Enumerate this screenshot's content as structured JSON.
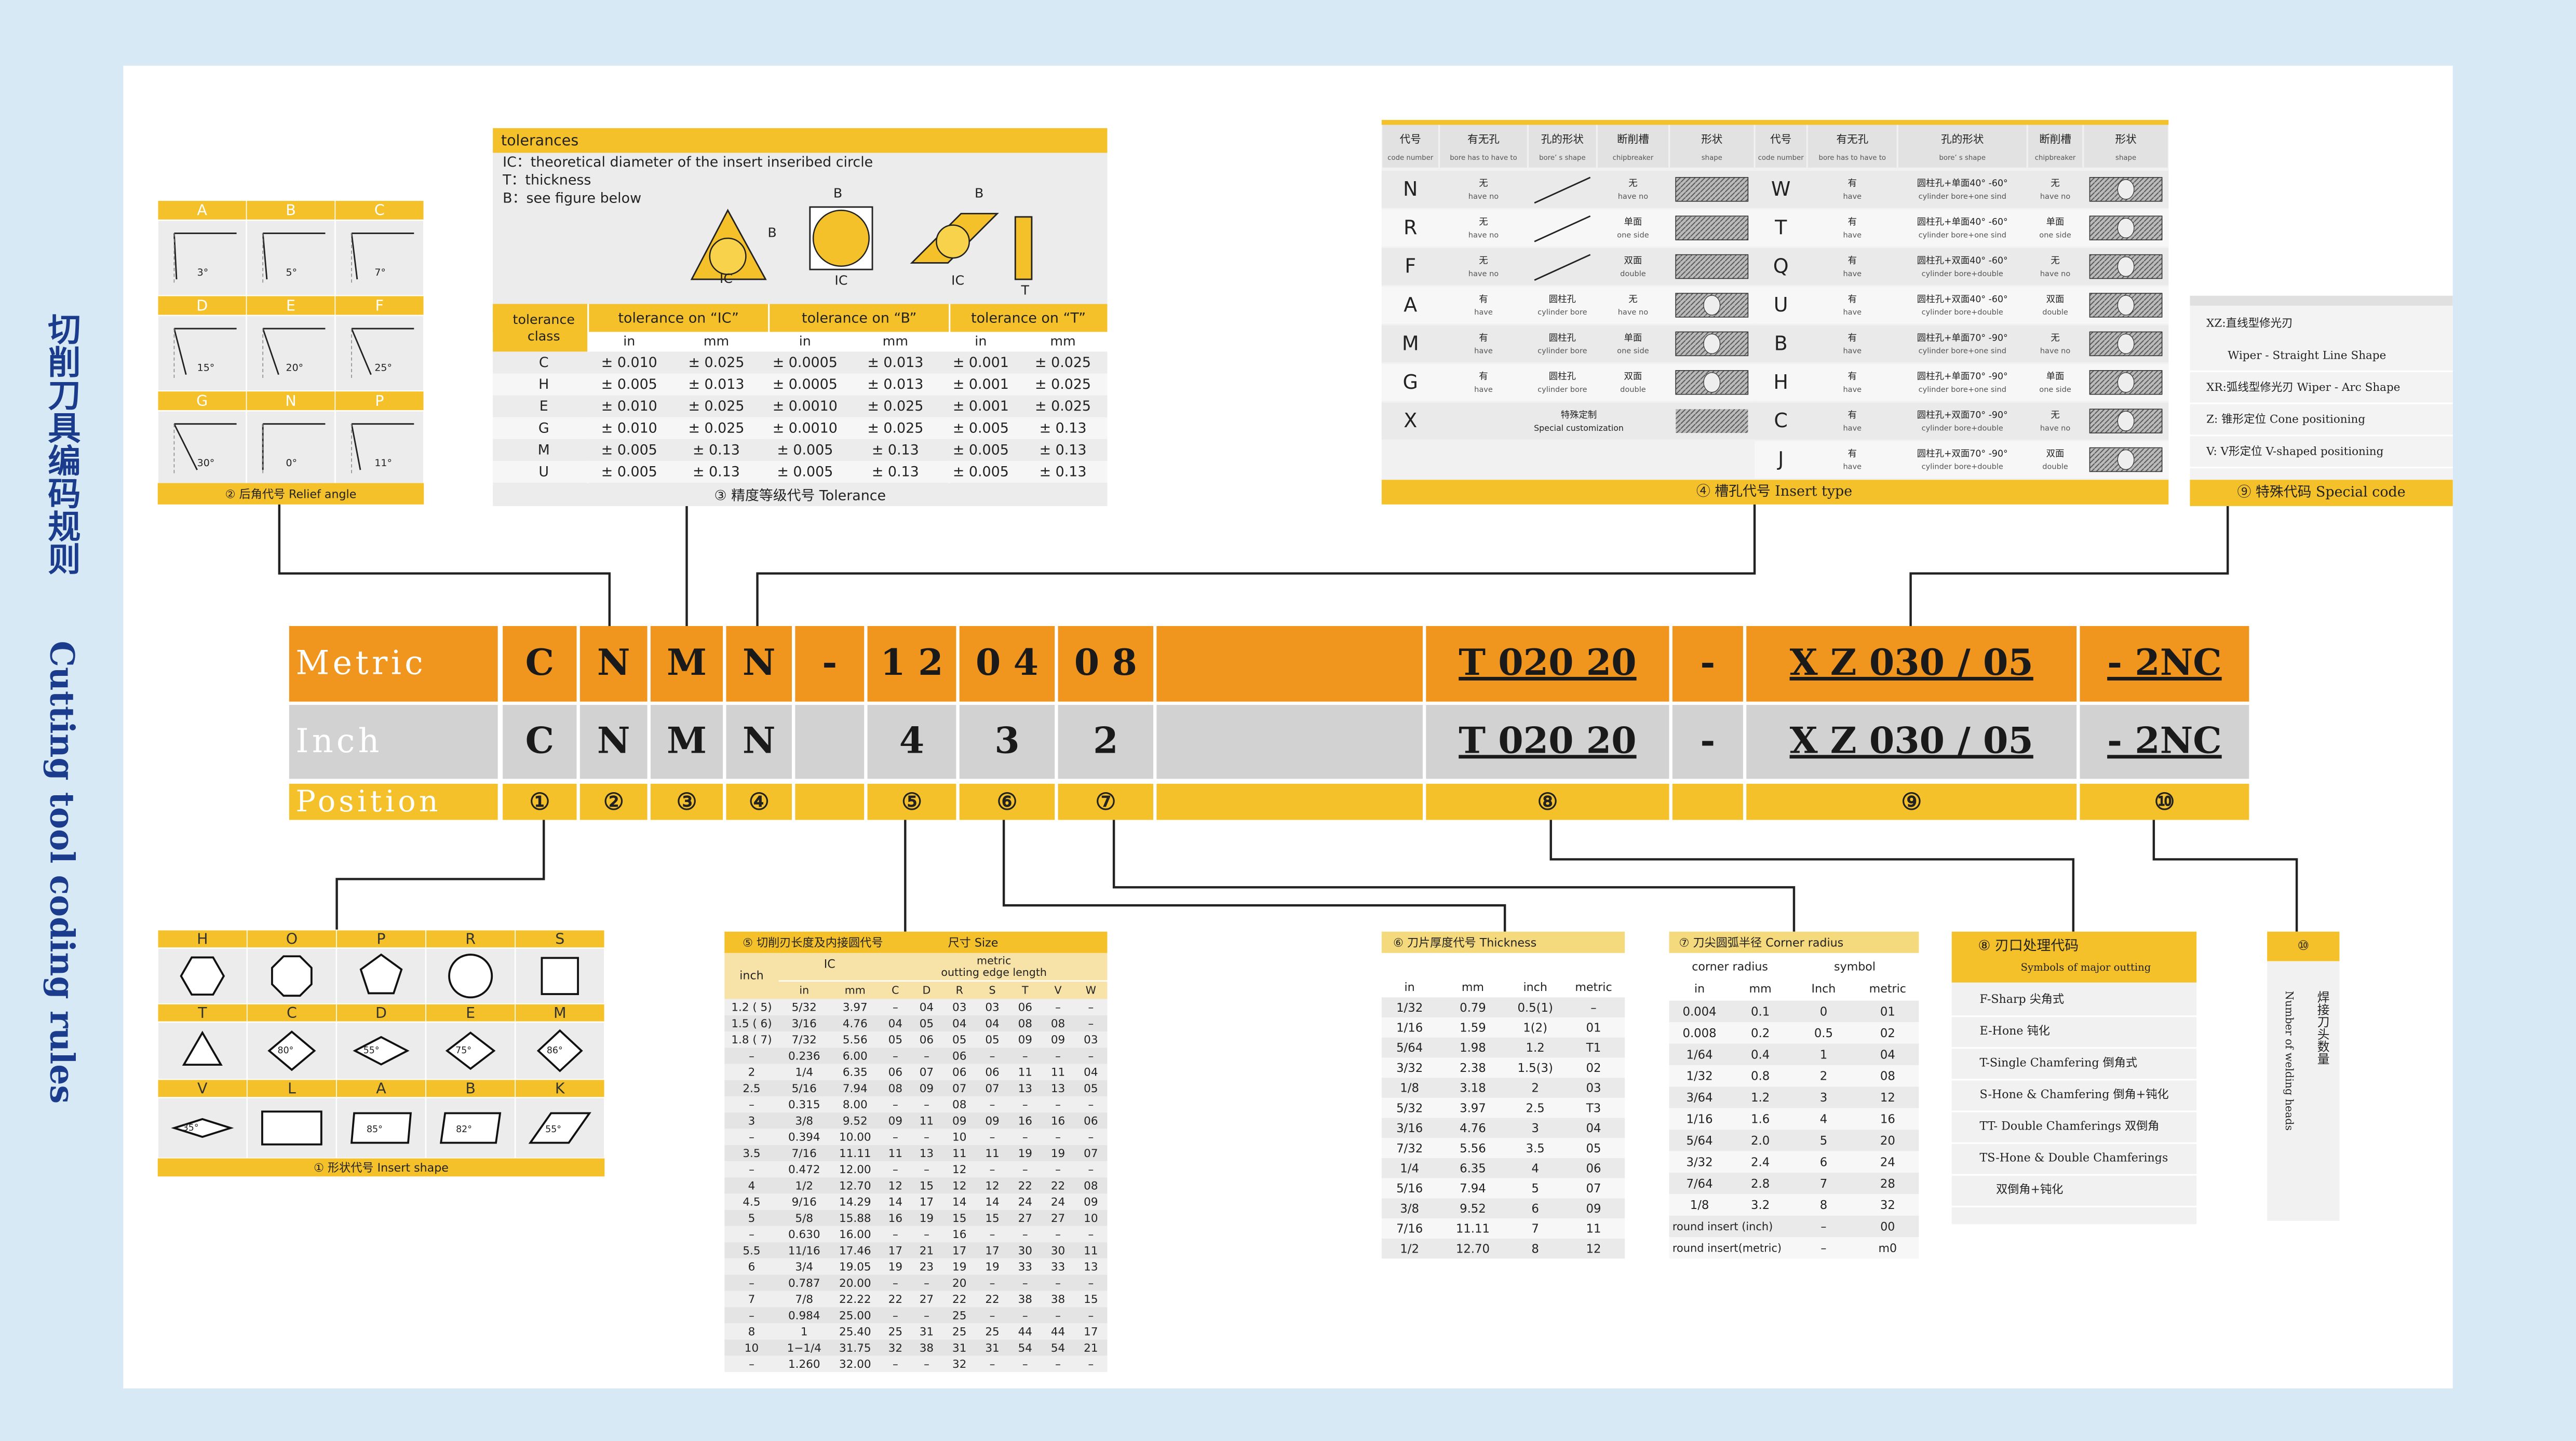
{
  "side_title": {
    "cn": "切削刀具编码规则",
    "en": "Cutting tool coding rules"
  },
  "code_table": {
    "rows": [
      {
        "label": "Metric",
        "cells": [
          "C",
          "N",
          "M",
          "N",
          "-",
          "1 2",
          "0 4",
          "0 8",
          null,
          "T  020 20",
          "-",
          "X  Z  030  /  05",
          "- 2NC"
        ]
      },
      {
        "label": "Inch",
        "cells": [
          "C",
          "N",
          "M",
          "N",
          null,
          "4",
          "3",
          "2",
          null,
          "T  020 20",
          "-",
          "X  Z  030  /  05",
          "- 2NC"
        ]
      },
      {
        "label": "Position",
        "cells": [
          "①",
          "②",
          "③",
          "④",
          null,
          "⑤",
          "⑥",
          "⑦",
          null,
          "⑧",
          null,
          "⑨",
          "⑩"
        ]
      }
    ]
  },
  "relief_angle": {
    "items": [
      {
        "code": "A",
        "angle": "3°"
      },
      {
        "code": "B",
        "angle": "5°"
      },
      {
        "code": "C",
        "angle": "7°"
      },
      {
        "code": "D",
        "angle": "15°"
      },
      {
        "code": "E",
        "angle": "20°"
      },
      {
        "code": "F",
        "angle": "25°"
      },
      {
        "code": "G",
        "angle": "30°"
      },
      {
        "code": "N",
        "angle": "0°"
      },
      {
        "code": "P",
        "angle": "11°"
      }
    ],
    "caption": "② 后角代号   Relief angle"
  },
  "tolerance": {
    "title": "tolerances",
    "notes": [
      "IC：theoretical diameter of the insert  inseribed circle",
      "T：thickness",
      "B：see figure below"
    ],
    "figure_labels": [
      "B",
      "IC",
      "B",
      "IC",
      "B",
      "IC",
      "T"
    ],
    "class_header": [
      "tolerance",
      "class"
    ],
    "groups": [
      "tolerance  on  “IC”",
      "tolerance  on  “B”",
      "tolerance  on  “T”"
    ],
    "units": [
      "in",
      "mm"
    ],
    "rows": [
      [
        "C",
        "± 0.010",
        "± 0.025",
        "± 0.0005",
        "± 0.013",
        "± 0.001",
        "± 0.025"
      ],
      [
        "H",
        "± 0.005",
        "± 0.013",
        "± 0.0005",
        "± 0.013",
        "± 0.001",
        "± 0.025"
      ],
      [
        "E",
        "± 0.010",
        "± 0.025",
        "± 0.0010",
        "± 0.025",
        "± 0.001",
        "± 0.025"
      ],
      [
        "G",
        "± 0.010",
        "± 0.025",
        "± 0.0010",
        "± 0.025",
        "± 0.005",
        "± 0.13"
      ],
      [
        "M",
        "± 0.005",
        "± 0.13",
        "± 0.005",
        "± 0.13",
        "± 0.005",
        "± 0.13"
      ],
      [
        "U",
        "± 0.005",
        "± 0.13",
        "± 0.005",
        "± 0.13",
        "± 0.005",
        "± 0.13"
      ]
    ],
    "caption": "③  精度等级代号     Tolerance"
  },
  "insert_type": {
    "headers": [
      [
        "代号",
        "code number"
      ],
      [
        "有无孔",
        "bore has to have to"
      ],
      [
        "孔的形状",
        "bore’ s shape"
      ],
      [
        "断削槽",
        "chipbreaker"
      ],
      [
        "形状",
        "shape"
      ]
    ],
    "left": [
      {
        "code": "N",
        "bore": [
          "无",
          "have no"
        ],
        "chip": [
          "无",
          "have no"
        ]
      },
      {
        "code": "R",
        "bore": [
          "无",
          "have no"
        ],
        "chip": [
          "单面",
          "one side"
        ]
      },
      {
        "code": "F",
        "bore": [
          "无",
          "have no"
        ],
        "chip": [
          "双面",
          "double"
        ]
      },
      {
        "code": "A",
        "bore": [
          "有",
          "have"
        ],
        "shape": [
          "圆柱孔",
          "cylinder bore"
        ],
        "chip": [
          "无",
          "have no"
        ]
      },
      {
        "code": "M",
        "bore": [
          "有",
          "have"
        ],
        "shape": [
          "圆柱孔",
          "cylinder bore"
        ],
        "chip": [
          "单面",
          "one side"
        ]
      },
      {
        "code": "G",
        "bore": [
          "有",
          "have"
        ],
        "shape": [
          "圆柱孔",
          "cylinder bore"
        ],
        "chip": [
          "双面",
          "double"
        ]
      },
      {
        "code": "X",
        "special": [
          "特殊定制",
          "Special customization"
        ]
      }
    ],
    "right": [
      {
        "code": "W",
        "bore": [
          "有",
          "have"
        ],
        "shape": [
          "圆柱孔+单面40° -60°",
          "cylinder bore+one sind"
        ],
        "chip": [
          "无",
          "have no"
        ]
      },
      {
        "code": "T",
        "bore": [
          "有",
          "have"
        ],
        "shape": [
          "圆柱孔+单面40° -60°",
          "cylinder bore+one sind"
        ],
        "chip": [
          "单面",
          "one side"
        ]
      },
      {
        "code": "Q",
        "bore": [
          "有",
          "have"
        ],
        "shape": [
          "圆柱孔+双面40° -60°",
          "cylinder bore+double"
        ],
        "chip": [
          "无",
          "have no"
        ]
      },
      {
        "code": "U",
        "bore": [
          "有",
          "have"
        ],
        "shape": [
          "圆柱孔+双面40° -60°",
          "cylinder bore+double"
        ],
        "chip": [
          "双面",
          "double"
        ]
      },
      {
        "code": "B",
        "bore": [
          "有",
          "have"
        ],
        "shape": [
          "圆柱孔+单面70° -90°",
          "cylinder bore+one sind"
        ],
        "chip": [
          "无",
          "have no"
        ]
      },
      {
        "code": "H",
        "bore": [
          "有",
          "have"
        ],
        "shape": [
          "圆柱孔+单面70° -90°",
          "cylinder bore+one sind"
        ],
        "chip": [
          "单面",
          "one side"
        ]
      },
      {
        "code": "C",
        "bore": [
          "有",
          "have"
        ],
        "shape": [
          "圆柱孔+双面70° -90°",
          "cylinder bore+double"
        ],
        "chip": [
          "无",
          "have no"
        ]
      },
      {
        "code": "J",
        "bore": [
          "有",
          "have"
        ],
        "shape": [
          "圆柱孔+双面70° -90°",
          "cylinder bore+double"
        ],
        "chip": [
          "双面",
          "double"
        ]
      }
    ],
    "caption": "④  槽孔代号  Insert type"
  },
  "special_code": {
    "lines": [
      "XZ:直线型修光刃",
      "Wiper - Straight Line Shape",
      "XR:弧线型修光刃 Wiper - Arc Shape",
      "Z: 锥形定位 Cone positioning",
      "V: V形定位 V-shaped positioning"
    ],
    "caption": "⑨  特殊代码 Special code"
  },
  "insert_shape": {
    "items": [
      {
        "code": "H"
      },
      {
        "code": "O"
      },
      {
        "code": "P"
      },
      {
        "code": "R"
      },
      {
        "code": "S"
      },
      {
        "code": "T"
      },
      {
        "code": "C",
        "angle": "80°"
      },
      {
        "code": "D",
        "angle": "55°"
      },
      {
        "code": "E",
        "angle": "75°"
      },
      {
        "code": "M",
        "angle": "86°"
      },
      {
        "code": "V",
        "angle": "35°"
      },
      {
        "code": "L"
      },
      {
        "code": "A",
        "angle": "85°"
      },
      {
        "code": "B",
        "angle": "82°"
      },
      {
        "code": "K",
        "angle": "55°"
      }
    ],
    "caption": "①  形状代号      Insert shape"
  },
  "size": {
    "title": "⑤  切削刃长度及内接圆代号",
    "title2": "尺寸    Size",
    "inch": "inch",
    "ic": "IC",
    "metric": "metric",
    "edge": "outting  edge length",
    "cols": [
      "in",
      "mm",
      "C",
      "D",
      "R",
      "S",
      "T",
      "V",
      "W"
    ],
    "rows": [
      [
        "1.2 ( 5)",
        "5/32",
        "3.97",
        "–",
        "04",
        "03",
        "03",
        "06",
        "–",
        "–"
      ],
      [
        "1.5 ( 6)",
        "3/16",
        "4.76",
        "04",
        "05",
        "04",
        "04",
        "08",
        "08",
        "–"
      ],
      [
        "1.8 ( 7)",
        "7/32",
        "5.56",
        "05",
        "06",
        "05",
        "05",
        "09",
        "09",
        "03"
      ],
      [
        "–",
        "0.236",
        "6.00",
        "–",
        "–",
        "06",
        "–",
        "–",
        "–",
        "–"
      ],
      [
        "2",
        "1/4",
        "6.35",
        "06",
        "07",
        "06",
        "06",
        "11",
        "11",
        "04"
      ],
      [
        "2.5",
        "5/16",
        "7.94",
        "08",
        "09",
        "07",
        "07",
        "13",
        "13",
        "05"
      ],
      [
        "–",
        "0.315",
        "8.00",
        "–",
        "–",
        "08",
        "–",
        "–",
        "–",
        "–"
      ],
      [
        "3",
        "3/8",
        "9.52",
        "09",
        "11",
        "09",
        "09",
        "16",
        "16",
        "06"
      ],
      [
        "–",
        "0.394",
        "10.00",
        "–",
        "–",
        "10",
        "–",
        "–",
        "–",
        "–"
      ],
      [
        "3.5",
        "7/16",
        "11.11",
        "11",
        "13",
        "11",
        "11",
        "19",
        "19",
        "07"
      ],
      [
        "–",
        "0.472",
        "12.00",
        "–",
        "–",
        "12",
        "–",
        "–",
        "–",
        "–"
      ],
      [
        "4",
        "1/2",
        "12.70",
        "12",
        "15",
        "12",
        "12",
        "22",
        "22",
        "08"
      ],
      [
        "4.5",
        "9/16",
        "14.29",
        "14",
        "17",
        "14",
        "14",
        "24",
        "24",
        "09"
      ],
      [
        "5",
        "5/8",
        "15.88",
        "16",
        "19",
        "15",
        "15",
        "27",
        "27",
        "10"
      ],
      [
        "–",
        "0.630",
        "16.00",
        "–",
        "–",
        "16",
        "–",
        "–",
        "–",
        "–"
      ],
      [
        "5.5",
        "11/16",
        "17.46",
        "17",
        "21",
        "17",
        "17",
        "30",
        "30",
        "11"
      ],
      [
        "6",
        "3/4",
        "19.05",
        "19",
        "23",
        "19",
        "19",
        "33",
        "33",
        "13"
      ],
      [
        "–",
        "0.787",
        "20.00",
        "–",
        "–",
        "20",
        "–",
        "–",
        "–",
        "–"
      ],
      [
        "7",
        "7/8",
        "22.22",
        "22",
        "27",
        "22",
        "22",
        "38",
        "38",
        "15"
      ],
      [
        "–",
        "0.984",
        "25.00",
        "–",
        "–",
        "25",
        "–",
        "–",
        "–",
        "–"
      ],
      [
        "8",
        "1",
        "25.40",
        "25",
        "31",
        "25",
        "25",
        "44",
        "44",
        "17"
      ],
      [
        "10",
        "1−1/4",
        "31.75",
        "32",
        "38",
        "31",
        "31",
        "54",
        "54",
        "21"
      ],
      [
        "–",
        "1.260",
        "32.00",
        "–",
        "–",
        "32",
        "–",
        "–",
        "–",
        "–"
      ]
    ]
  },
  "thickness": {
    "title": "⑥     刀片厚度代号    Thickness",
    "cols": [
      "in",
      "mm",
      "inch",
      "metric"
    ],
    "rows": [
      [
        "1/32",
        "0.79",
        "0.5(1)",
        "–"
      ],
      [
        "1/16",
        "1.59",
        "1(2)",
        "01"
      ],
      [
        "5/64",
        "1.98",
        "1.2",
        "T1"
      ],
      [
        "3/32",
        "2.38",
        "1.5(3)",
        "02"
      ],
      [
        "1/8",
        "3.18",
        "2",
        "03"
      ],
      [
        "5/32",
        "3.97",
        "2.5",
        "T3"
      ],
      [
        "3/16",
        "4.76",
        "3",
        "04"
      ],
      [
        "7/32",
        "5.56",
        "3.5",
        "05"
      ],
      [
        "1/4",
        "6.35",
        "4",
        "06"
      ],
      [
        "5/16",
        "7.94",
        "5",
        "07"
      ],
      [
        "3/8",
        "9.52",
        "6",
        "09"
      ],
      [
        "7/16",
        "11.11",
        "7",
        "11"
      ],
      [
        "1/2",
        "12.70",
        "8",
        "12"
      ]
    ]
  },
  "corner_radius": {
    "title": "⑦ 刀尖圆弧半径  Corner radius",
    "groups": [
      "corner radius",
      "symbol"
    ],
    "cols": [
      "in",
      "mm",
      "Inch",
      "metric"
    ],
    "rows": [
      [
        "0.004",
        "0.1",
        "0",
        "01"
      ],
      [
        "0.008",
        "0.2",
        "0.5",
        "02"
      ],
      [
        "1/64",
        "0.4",
        "1",
        "04"
      ],
      [
        "1/32",
        "0.8",
        "2",
        "08"
      ],
      [
        "3/64",
        "1.2",
        "3",
        "12"
      ],
      [
        "1/16",
        "1.6",
        "4",
        "16"
      ],
      [
        "5/64",
        "2.0",
        "5",
        "20"
      ],
      [
        "3/32",
        "2.4",
        "6",
        "24"
      ],
      [
        "7/64",
        "2.8",
        "7",
        "28"
      ],
      [
        "1/8",
        "3.2",
        "8",
        "32"
      ]
    ],
    "round_rows": [
      [
        "round insert (inch)",
        "–",
        "00"
      ],
      [
        "round insert(metric)",
        "–",
        "m0"
      ]
    ]
  },
  "edge_prep": {
    "title": "⑧    刃口处理代码",
    "subtitle": "Symbols of major outting",
    "items": [
      "F-Sharp 尖角式",
      "E-Hone   钝化",
      "T-Single Chamfering  倒角式",
      "S-Hone & Chamfering  倒角+钝化",
      "TT- Double Chamferings 双倒角",
      "TS-Hone & Double Chamferings",
      "双倒角+钝化"
    ]
  },
  "welding": {
    "title": "⑩",
    "cn": "焊接刀头数量",
    "en": "Number of welding heads"
  }
}
